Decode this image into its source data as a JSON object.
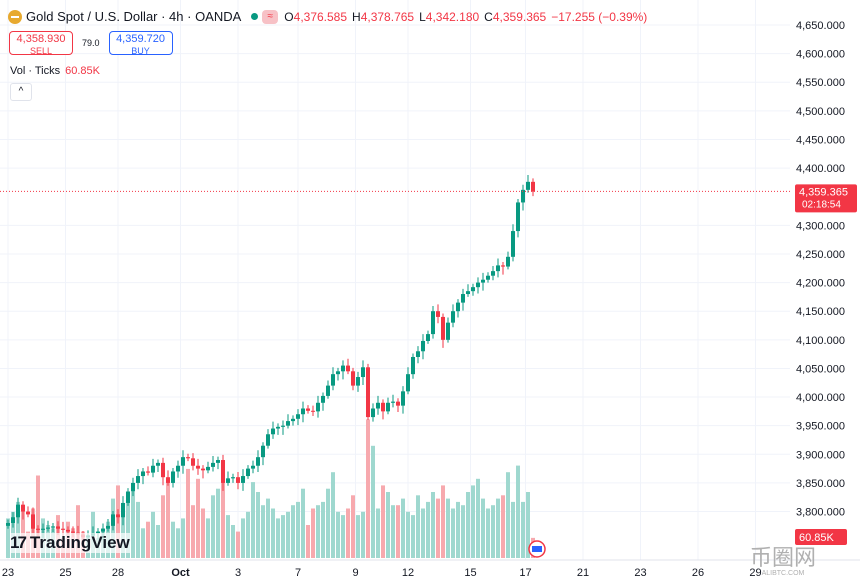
{
  "header": {
    "symbol": "Gold Spot / U.S. Dollar · 4h · OANDA",
    "o_label": "O",
    "o": "4,376.585",
    "h_label": "H",
    "h": "4,378.765",
    "l_label": "L",
    "l": "4,342.180",
    "c_label": "C",
    "c": "4,359.365",
    "change": "−17.255 (−0.39%)",
    "badge": "≈"
  },
  "trade": {
    "sell_price": "4,358.930",
    "sell_label": "SELL",
    "spread": "79.0",
    "buy_price": "4,359.720",
    "buy_label": "BUY"
  },
  "volume_legend": {
    "label": "Vol · Ticks",
    "value": "60.85K"
  },
  "collapse_label": "^",
  "logo": {
    "mark": "17",
    "text": "TradingView"
  },
  "watermark": {
    "text": "币圈网",
    "sub": "ALIBTC.COM"
  },
  "colors": {
    "up": "#089981",
    "down": "#f23645",
    "up_vol": "#9fd8cf",
    "down_vol": "#f7a9ae",
    "grid": "#f0f3fa"
  },
  "chart_data": {
    "type": "candlestick",
    "title": "Gold Spot / U.S. Dollar · 4h · OANDA",
    "ylim": [
      3750,
      4680
    ],
    "y_ticks": [
      "4,650.000",
      "4,600.000",
      "4,550.000",
      "4,500.000",
      "4,450.000",
      "4,400.000",
      "4,300.000",
      "4,250.000",
      "4,200.000",
      "4,150.000",
      "4,100.000",
      "4,050.000",
      "4,000.000",
      "3,950.000",
      "3,900.000",
      "3,850.000",
      "3,800.000"
    ],
    "y_tick_values": [
      4650,
      4600,
      4550,
      4500,
      4450,
      4400,
      4300,
      4250,
      4200,
      4150,
      4100,
      4050,
      4000,
      3950,
      3900,
      3850,
      3800
    ],
    "x_ticks": [
      "23",
      "25",
      "28",
      "Oct",
      "3",
      "7",
      "9",
      "12",
      "15",
      "17",
      "21",
      "23",
      "26",
      "29"
    ],
    "x_tick_candle_index": [
      0,
      11.5,
      22,
      34.5,
      46,
      58,
      69.5,
      80,
      92.5,
      103.5,
      115,
      126.5,
      138,
      149.5
    ],
    "last_price": "4,359.365",
    "last_price_value": 4359.365,
    "countdown": "02:18:54",
    "volume_label": "60.85K",
    "open_first": 3775,
    "closes": [
      3780,
      3790,
      3812,
      3800,
      3795,
      3770,
      3768,
      3770,
      3772,
      3774,
      3770,
      3768,
      3765,
      3763,
      3760,
      3755,
      3758,
      3762,
      3765,
      3770,
      3775,
      3795,
      3790,
      3815,
      3835,
      3850,
      3862,
      3870,
      3868,
      3880,
      3885,
      3860,
      3850,
      3870,
      3880,
      3895,
      3893,
      3880,
      3875,
      3872,
      3878,
      3885,
      3890,
      3850,
      3858,
      3860,
      3850,
      3862,
      3875,
      3880,
      3895,
      3915,
      3935,
      3945,
      3948,
      3950,
      3958,
      3962,
      3970,
      3980,
      3976,
      3975,
      3990,
      4002,
      4020,
      4040,
      4045,
      4055,
      4045,
      4020,
      4035,
      4052,
      3965,
      3980,
      3990,
      3975,
      3990,
      3992,
      3985,
      4010,
      4040,
      4070,
      4080,
      4098,
      4110,
      4150,
      4140,
      4100,
      4130,
      4150,
      4165,
      4180,
      4185,
      4192,
      4200,
      4205,
      4212,
      4220,
      4230,
      4228,
      4245,
      4290,
      4340,
      4362,
      4376,
      4359
    ],
    "volumes_k": [
      120,
      140,
      170,
      160,
      80,
      150,
      250,
      120,
      100,
      90,
      130,
      60,
      110,
      90,
      160,
      80,
      70,
      140,
      60,
      90,
      110,
      180,
      220,
      150,
      180,
      200,
      170,
      90,
      110,
      140,
      100,
      190,
      230,
      110,
      90,
      120,
      270,
      160,
      240,
      150,
      120,
      190,
      210,
      280,
      130,
      100,
      80,
      120,
      140,
      230,
      200,
      160,
      180,
      150,
      120,
      130,
      140,
      160,
      170,
      210,
      100,
      150,
      160,
      170,
      210,
      260,
      140,
      130,
      150,
      190,
      130,
      140,
      420,
      340,
      150,
      220,
      200,
      160,
      160,
      180,
      140,
      130,
      190,
      150,
      170,
      200,
      180,
      220,
      180,
      150,
      170,
      160,
      200,
      220,
      240,
      180,
      150,
      160,
      180,
      190,
      260,
      170,
      280,
      170,
      200,
      61
    ]
  }
}
